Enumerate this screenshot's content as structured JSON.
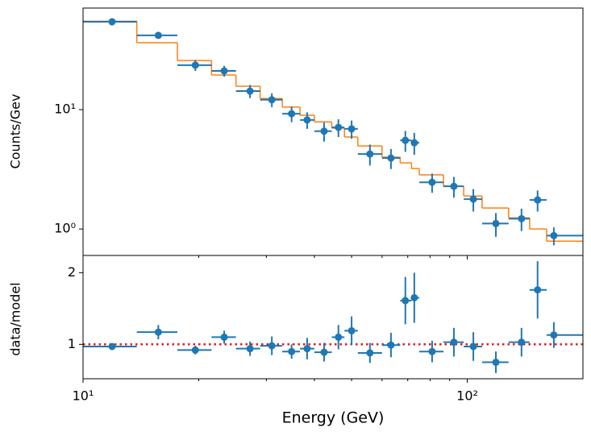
{
  "chart_data": [
    {
      "type": "errorbar",
      "ylabel": "Counts/Gev",
      "xscale": "log",
      "yscale": "log",
      "xlim": [
        10,
        200
      ],
      "ylim": [
        0.6,
        71
      ],
      "yticks": [
        {
          "value": 1,
          "label": "10⁰"
        },
        {
          "value": 10,
          "label": "10¹"
        }
      ],
      "x": [
        11.9,
        15.7,
        19.6,
        23.3,
        27.2,
        31.0,
        34.9,
        38.3,
        42.4,
        46.2,
        50.0,
        55.8,
        63.3,
        69.0,
        72.8,
        81.0,
        92.3,
        103.7,
        118.7,
        138.4,
        152.4,
        168
      ],
      "bins": [
        10,
        13.8,
        17.6,
        21.6,
        25.0,
        28.9,
        33.0,
        36.7,
        40.0,
        44.4,
        47.9,
        51.9,
        60.0,
        66.9,
        71.6,
        75.0,
        86.7,
        97.9,
        109.3,
        128.1,
        145.3,
        160.9,
        200
      ],
      "values": [
        54.5,
        41.9,
        23.6,
        21.1,
        14.3,
        12.1,
        9.25,
        8.2,
        6.6,
        7.1,
        6.9,
        4.25,
        3.93,
        5.53,
        5.28,
        2.46,
        2.28,
        1.78,
        1.11,
        1.22,
        1.75,
        0.88
      ],
      "yerr": [
        2,
        2.5,
        2.5,
        2.2,
        1.8,
        1.6,
        1.4,
        1.3,
        1.2,
        1.2,
        1.2,
        0.85,
        0.75,
        1.1,
        1.1,
        0.45,
        0.45,
        0.38,
        0.25,
        0.26,
        0.35,
        0.15
      ],
      "color": "#1f77b4",
      "model": [
        55,
        36.4,
        25.8,
        19.5,
        15.7,
        12.4,
        10.5,
        8.97,
        7.9,
        7.0,
        5.9,
        4.96,
        4.0,
        3.58,
        3.21,
        2.84,
        2.28,
        1.89,
        1.5,
        1.24,
        1.0,
        0.79
      ],
      "model_color": "#ff7f0e"
    },
    {
      "type": "errorbar",
      "xlabel": "Energy (GeV)",
      "ylabel": "data/model",
      "xscale": "log",
      "xlim": [
        10,
        200
      ],
      "ylim": [
        0.52,
        2.24
      ],
      "xticks": [
        {
          "value": 10,
          "label": "10¹"
        },
        {
          "value": 100,
          "label": "10²"
        }
      ],
      "xminorticks": [
        20,
        30,
        40,
        50,
        60,
        70,
        80,
        90
      ],
      "yticks": [
        1,
        2
      ],
      "values": [
        0.97,
        1.17,
        0.92,
        1.1,
        0.94,
        0.98,
        0.9,
        0.94,
        0.89,
        1.1,
        1.19,
        0.88,
        0.99,
        1.61,
        1.65,
        0.9,
        1.03,
        0.97,
        0.75,
        1.03,
        1.76,
        1.13
      ],
      "yerr": [
        0.04,
        0.1,
        0.06,
        0.09,
        0.1,
        0.13,
        0.1,
        0.15,
        0.13,
        0.17,
        0.2,
        0.14,
        0.17,
        0.33,
        0.35,
        0.15,
        0.2,
        0.2,
        0.15,
        0.2,
        0.4,
        0.18
      ],
      "color": "#1f77b4",
      "reference_line": 1,
      "reference_color": "#e31a1c"
    }
  ]
}
